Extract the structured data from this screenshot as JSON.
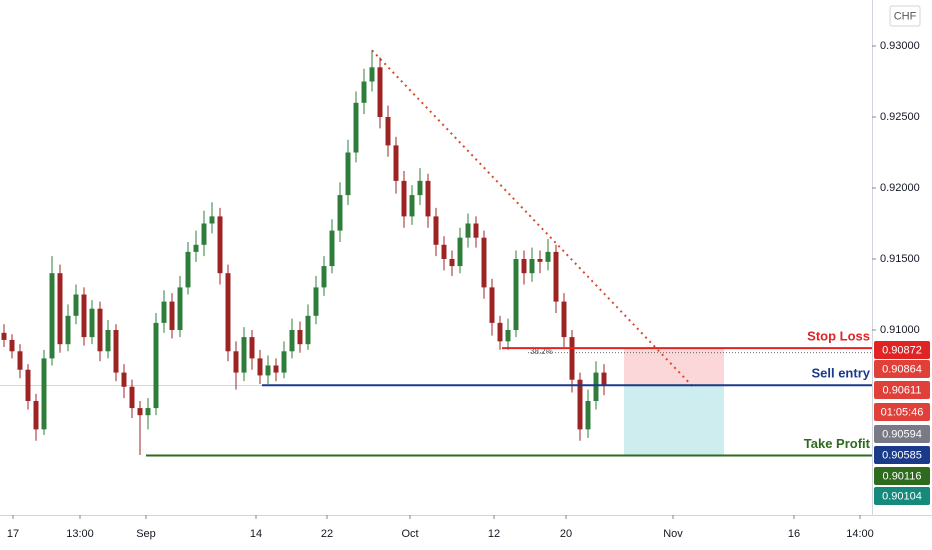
{
  "chart_data": {
    "type": "candlestick",
    "currency": "CHF",
    "up_color": "#2f7d3b",
    "down_color": "#9e2424",
    "ylim": [
      0.89697,
      0.93324
    ],
    "yticks": [
      {
        "value": 0.93,
        "label": "0.93000"
      },
      {
        "value": 0.925,
        "label": "0.92500"
      },
      {
        "value": 0.92,
        "label": "0.92000"
      },
      {
        "value": 0.915,
        "label": "0.91500"
      },
      {
        "value": 0.91,
        "label": "0.91000"
      }
    ],
    "x_axis_labels": [
      "17",
      "13:00",
      "Sep",
      "14",
      "22",
      "Oct",
      "12",
      "20",
      "Nov",
      "16",
      "14:00"
    ],
    "open": [
      0.9098,
      0.9093,
      0.9085,
      0.9072,
      0.905,
      0.903,
      0.908,
      0.914,
      0.909,
      0.911,
      0.9125,
      0.9095,
      0.9115,
      0.9085,
      0.91,
      0.907,
      0.906,
      0.9045,
      0.904,
      0.9045,
      0.9105,
      0.912,
      0.91,
      0.913,
      0.9155,
      0.916,
      0.9175,
      0.918,
      0.914,
      0.9085,
      0.907,
      0.9095,
      0.908,
      0.9068,
      0.9075,
      0.907,
      0.9085,
      0.91,
      0.909,
      0.911,
      0.913,
      0.9145,
      0.917,
      0.9195,
      0.9225,
      0.926,
      0.9275,
      0.9285,
      0.925,
      0.923,
      0.9205,
      0.918,
      0.9195,
      0.9205,
      0.918,
      0.916,
      0.915,
      0.9145,
      0.9165,
      0.9175,
      0.9165,
      0.913,
      0.9105,
      0.9092,
      0.91,
      0.915,
      0.914,
      0.915,
      0.9148,
      0.9155,
      0.912,
      0.9095,
      0.9065,
      0.903,
      0.905,
      0.907
    ],
    "high": [
      0.9104,
      0.9097,
      0.909,
      0.9076,
      0.9055,
      0.9086,
      0.9152,
      0.9146,
      0.9118,
      0.9132,
      0.913,
      0.9121,
      0.912,
      0.9107,
      0.9104,
      0.9076,
      0.9065,
      0.905,
      0.9052,
      0.9112,
      0.9128,
      0.9126,
      0.9138,
      0.9162,
      0.917,
      0.9184,
      0.919,
      0.9186,
      0.9146,
      0.9092,
      0.9102,
      0.91,
      0.9086,
      0.9082,
      0.908,
      0.9092,
      0.9108,
      0.9106,
      0.9118,
      0.9138,
      0.9152,
      0.9178,
      0.9204,
      0.9234,
      0.9268,
      0.9284,
      0.9297,
      0.9292,
      0.9258,
      0.9236,
      0.9212,
      0.9202,
      0.9214,
      0.921,
      0.9186,
      0.9166,
      0.9156,
      0.9172,
      0.9182,
      0.918,
      0.917,
      0.9136,
      0.911,
      0.9108,
      0.9156,
      0.9156,
      0.9158,
      0.9156,
      0.9164,
      0.916,
      0.9126,
      0.91,
      0.907,
      0.9058,
      0.9078,
      0.9076
    ],
    "low": [
      0.9088,
      0.908,
      0.9066,
      0.9044,
      0.9022,
      0.9026,
      0.9075,
      0.9084,
      0.9085,
      0.9104,
      0.9089,
      0.909,
      0.9078,
      0.908,
      0.9064,
      0.9052,
      0.9038,
      0.9012,
      0.903,
      0.904,
      0.9098,
      0.9094,
      0.9095,
      0.9125,
      0.9148,
      0.9152,
      0.9168,
      0.9132,
      0.9078,
      0.9058,
      0.9064,
      0.9072,
      0.9062,
      0.9062,
      0.9064,
      0.9066,
      0.908,
      0.9084,
      0.9086,
      0.9104,
      0.9124,
      0.914,
      0.9162,
      0.9188,
      0.9218,
      0.9252,
      0.9268,
      0.9242,
      0.9222,
      0.9196,
      0.9172,
      0.9174,
      0.9188,
      0.9172,
      0.9152,
      0.9142,
      0.9138,
      0.914,
      0.9158,
      0.9158,
      0.9122,
      0.9096,
      0.9086,
      0.9086,
      0.9095,
      0.9132,
      0.9134,
      0.914,
      0.9142,
      0.9112,
      0.9088,
      0.9056,
      0.9022,
      0.9024,
      0.9044,
      0.9054
    ],
    "close": [
      0.9093,
      0.9085,
      0.9072,
      0.905,
      0.903,
      0.908,
      0.914,
      0.909,
      0.911,
      0.9125,
      0.9095,
      0.9115,
      0.9085,
      0.91,
      0.907,
      0.906,
      0.9045,
      0.904,
      0.9045,
      0.9105,
      0.912,
      0.91,
      0.913,
      0.9155,
      0.916,
      0.9175,
      0.918,
      0.914,
      0.9085,
      0.907,
      0.9095,
      0.908,
      0.9068,
      0.9075,
      0.907,
      0.9085,
      0.91,
      0.909,
      0.911,
      0.913,
      0.9145,
      0.917,
      0.9195,
      0.9225,
      0.926,
      0.9275,
      0.9285,
      0.925,
      0.923,
      0.9205,
      0.918,
      0.9195,
      0.9205,
      0.918,
      0.916,
      0.915,
      0.9145,
      0.9165,
      0.9175,
      0.9165,
      0.913,
      0.9105,
      0.9092,
      0.91,
      0.915,
      0.914,
      0.915,
      0.9148,
      0.9155,
      0.912,
      0.9095,
      0.9065,
      0.903,
      0.905,
      0.907,
      0.9061
    ],
    "levels": [
      {
        "name": "Stop Loss",
        "value": 0.90872,
        "color": "#e02424"
      },
      {
        "name": "Sell entry",
        "value": 0.90611,
        "color": "#1a3a8a"
      },
      {
        "name": "Take Profit",
        "value": 0.90116,
        "color": "#2e6b1e"
      }
    ],
    "trendline": [
      0.9297,
      0.906
    ],
    "fib_label": "38.2%",
    "fib_level": 0.9084,
    "price_tags": [
      {
        "value": 0.90872,
        "color": "#e02424"
      },
      {
        "value": 0.90864,
        "color": "#e0403a"
      },
      {
        "value": 0.90611,
        "color": "#e0403a"
      },
      {
        "label": "01:05:46",
        "color": "#e0403a"
      },
      {
        "value": 0.90594,
        "color": "#787b86"
      },
      {
        "value": 0.90585,
        "color": "#1a3a8a"
      },
      {
        "value": 0.90116,
        "color": "#2e6b1e"
      },
      {
        "value": 0.90104,
        "color": "#16897d"
      }
    ]
  }
}
